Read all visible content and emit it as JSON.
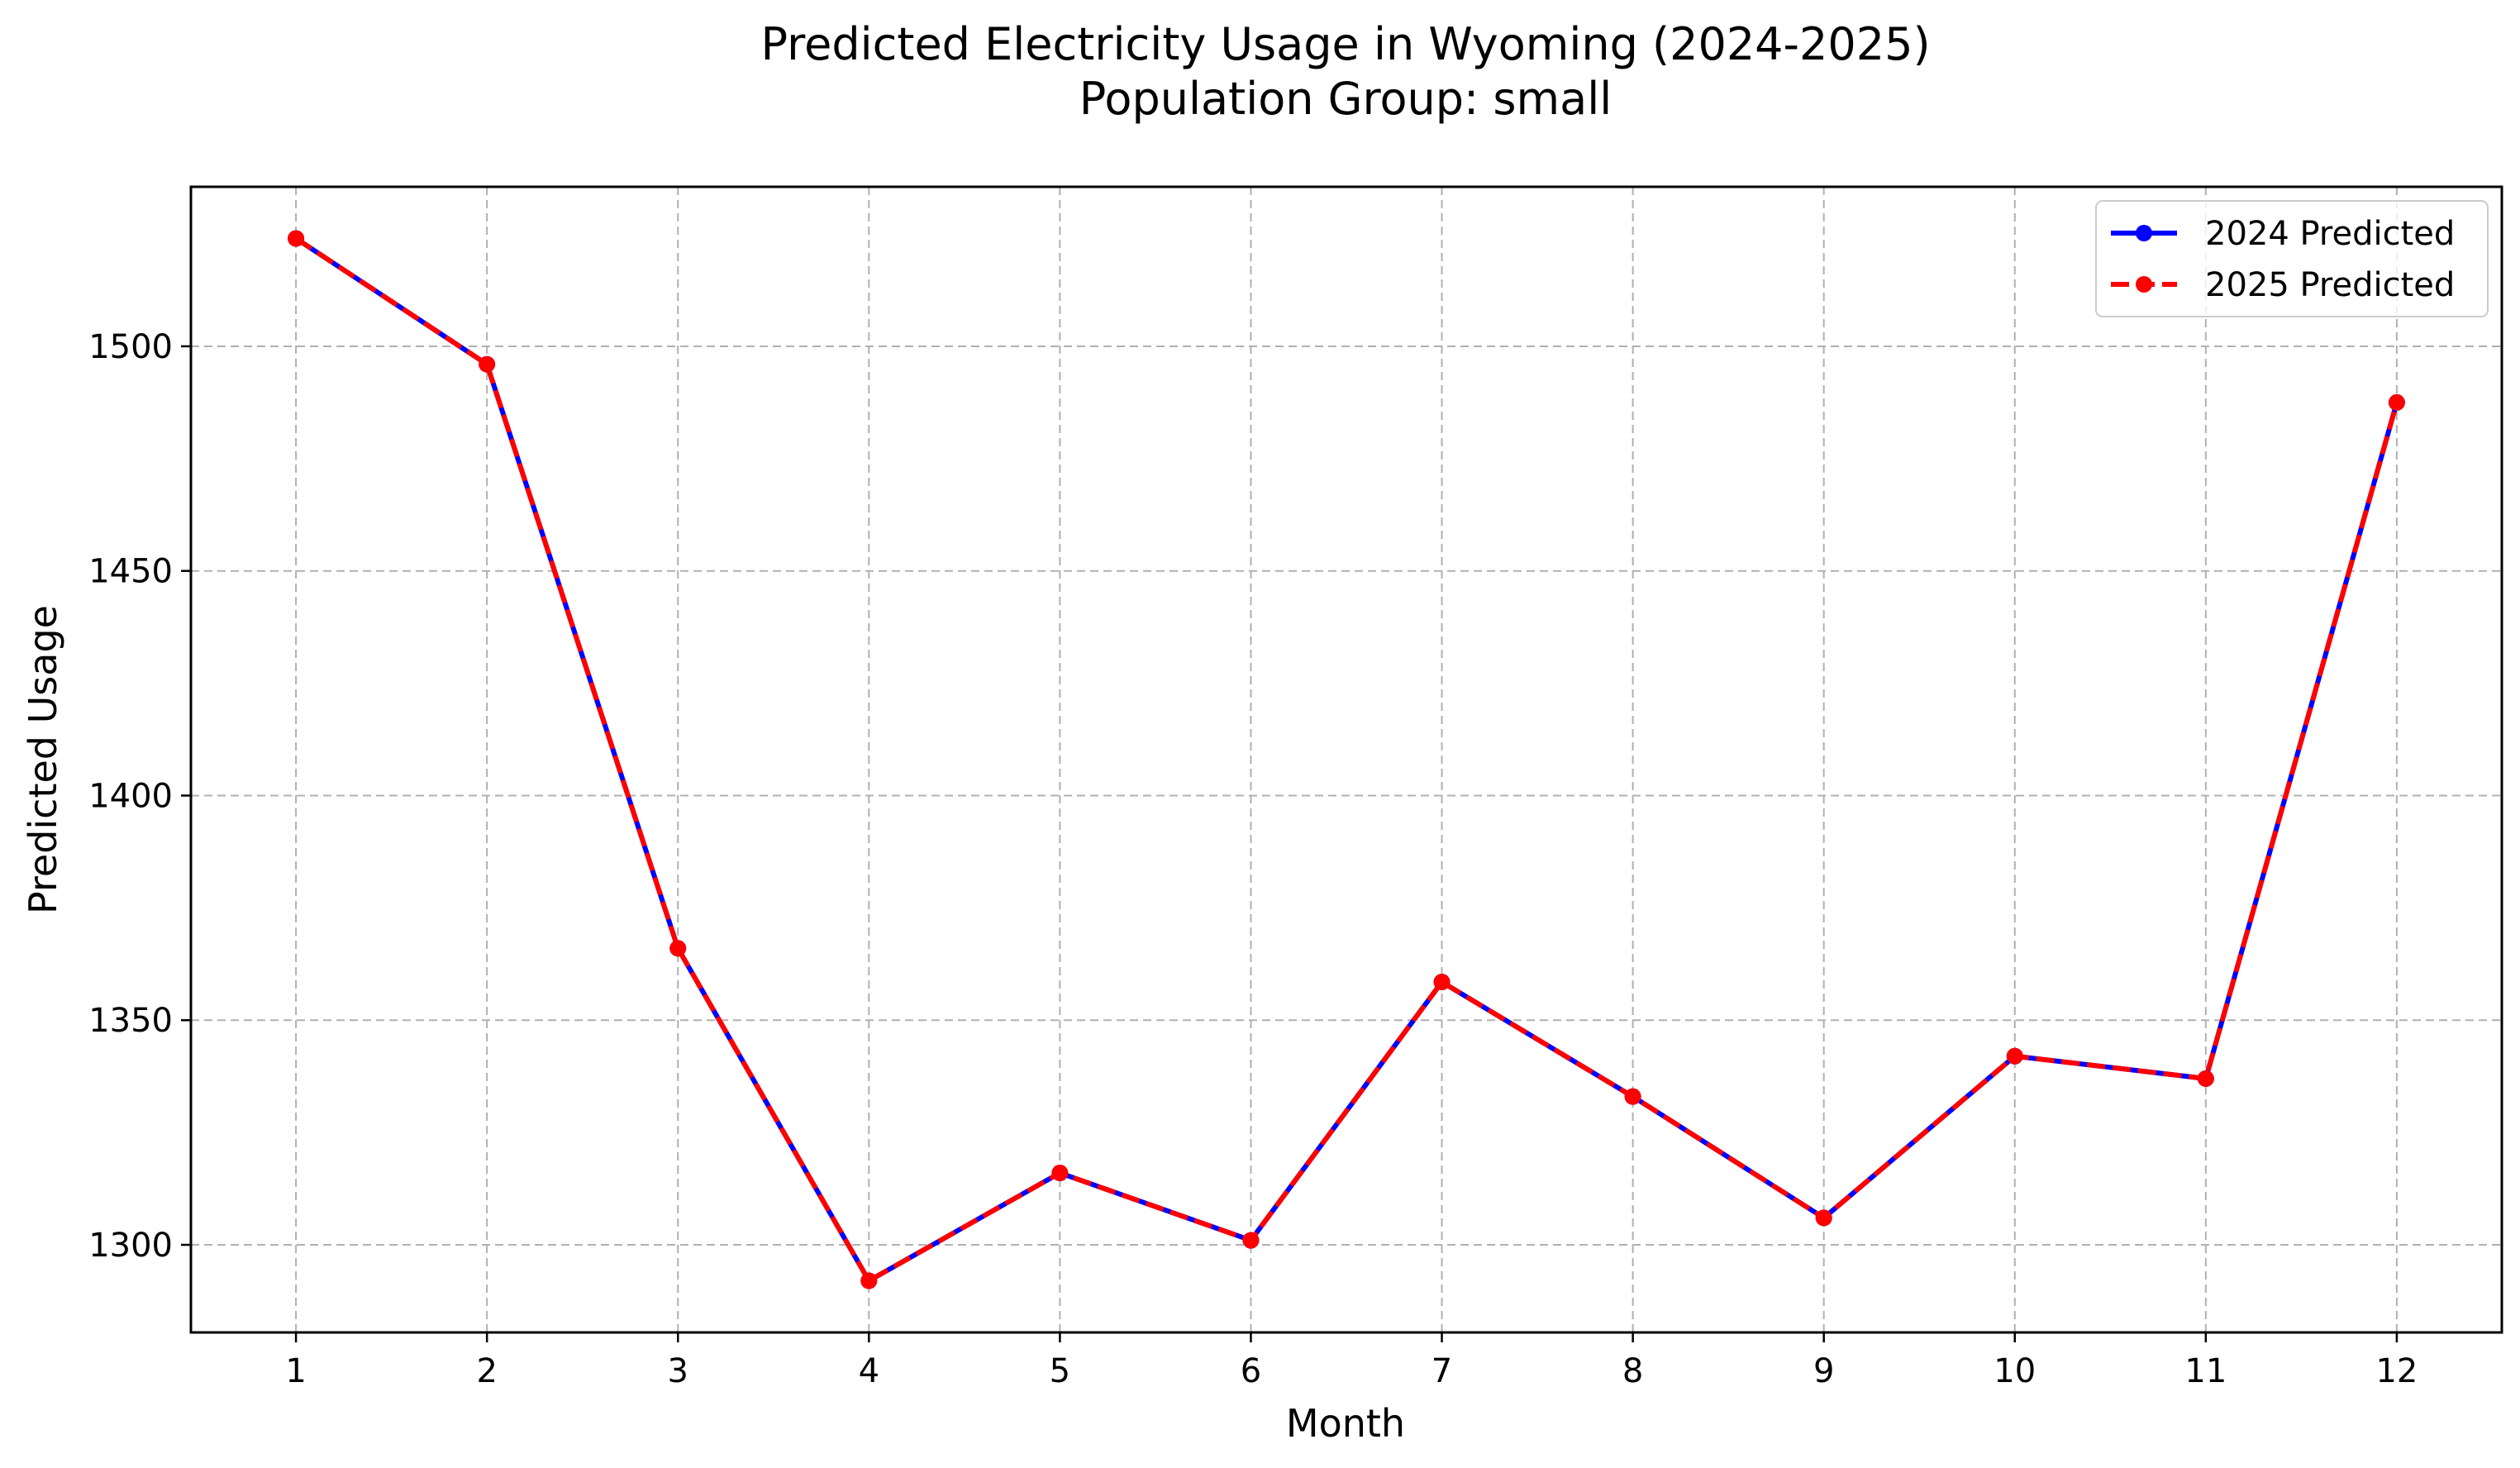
{
  "chart_data": {
    "type": "line",
    "title": "Predicted Electricity Usage in Wyoming (2024-2025)",
    "subtitle": "Population Group: small",
    "xlabel": "Month",
    "ylabel": "Predicted Usage",
    "x": [
      1,
      2,
      3,
      4,
      5,
      6,
      7,
      8,
      9,
      10,
      11,
      12
    ],
    "x_tick_labels": [
      "1",
      "2",
      "3",
      "4",
      "5",
      "6",
      "7",
      "8",
      "9",
      "10",
      "11",
      "12"
    ],
    "xlim": [
      0.45,
      12.55
    ],
    "ylim": [
      1280.5,
      1535.5
    ],
    "y_ticks": [
      1300,
      1350,
      1400,
      1450,
      1500
    ],
    "y_tick_labels": [
      "1300",
      "1350",
      "1400",
      "1450",
      "1500"
    ],
    "grid": true,
    "legend_position": "top-right",
    "series": [
      {
        "name": "2024 Predicted",
        "color": "#0000ff",
        "line_style": "solid",
        "values": [
          1524,
          1496,
          1366,
          1292,
          1316,
          1301,
          1358.5,
          1333,
          1306,
          1342,
          1337,
          1487.5
        ]
      },
      {
        "name": "2025 Predicted",
        "color": "#ff0000",
        "line_style": "dashed",
        "values": [
          1524,
          1496,
          1366,
          1292,
          1316,
          1301,
          1358.5,
          1333,
          1306,
          1342,
          1337,
          1487.5
        ]
      }
    ]
  }
}
